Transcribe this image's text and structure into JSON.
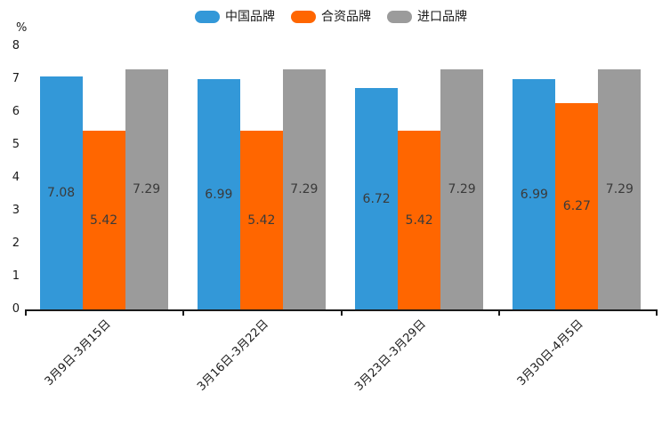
{
  "page": {
    "background": "#ffffff",
    "unit_label": "%"
  },
  "colors": {
    "axis": "#1a1a1a",
    "bar_label_text": "#3a3a3a",
    "series_blue": "#3398d8",
    "series_orange": "#ff6600",
    "series_gray": "#9b9b9b"
  },
  "chart_data": {
    "type": "bar",
    "title": "",
    "xlabel": "",
    "ylabel": "%",
    "ylim": [
      0,
      8
    ],
    "yticks": [
      0,
      1,
      2,
      3,
      4,
      5,
      6,
      7,
      8
    ],
    "grid": false,
    "legend_position": "top",
    "bar_value_labels": true,
    "categories": [
      "3月9日-3月15日",
      "3月16日-3月22日",
      "3月23日-3月29日",
      "3月30日-4月5日"
    ],
    "series": [
      {
        "name": "中国品牌",
        "color": "#3398d8",
        "values": [
          7.08,
          6.99,
          6.72,
          6.99
        ]
      },
      {
        "name": "合资品牌",
        "color": "#ff6600",
        "values": [
          5.42,
          5.42,
          5.42,
          6.27
        ]
      },
      {
        "name": "进口品牌",
        "color": "#9b9b9b",
        "values": [
          7.29,
          7.29,
          7.29,
          7.29
        ]
      }
    ]
  }
}
